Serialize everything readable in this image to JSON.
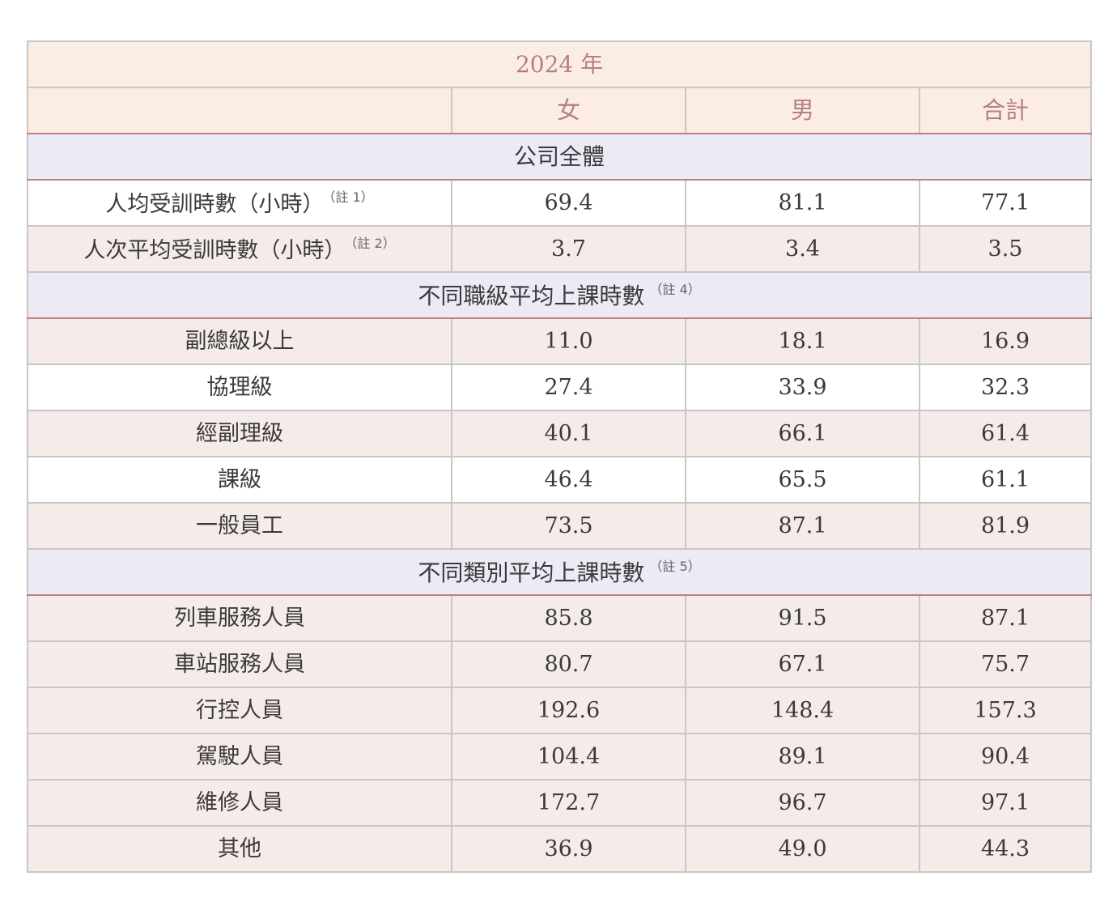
{
  "year_title": "2024 年",
  "columns": [
    "",
    "女",
    "男",
    "合計"
  ],
  "sections": [
    {
      "title": "公司全體",
      "note": "",
      "rows": [
        {
          "label": "人均受訓時數（小時）",
          "note": "（註 1）",
          "female": "69.4",
          "male": "81.1",
          "total": "77.1",
          "shade": false
        },
        {
          "label": "人次平均受訓時數（小時）",
          "note": "（註 2）",
          "female": "3.7",
          "male": "3.4",
          "total": "3.5",
          "shade": true
        }
      ]
    },
    {
      "title": "不同職級平均上課時數",
      "note": "（註 4）",
      "rows": [
        {
          "label": "副總級以上",
          "note": "",
          "female": "11.0",
          "male": "18.1",
          "total": "16.9",
          "shade": true
        },
        {
          "label": "協理級",
          "note": "",
          "female": "27.4",
          "male": "33.9",
          "total": "32.3",
          "shade": false
        },
        {
          "label": "經副理級",
          "note": "",
          "female": "40.1",
          "male": "66.1",
          "total": "61.4",
          "shade": true
        },
        {
          "label": "課級",
          "note": "",
          "female": "46.4",
          "male": "65.5",
          "total": "61.1",
          "shade": false
        },
        {
          "label": "一般員工",
          "note": "",
          "female": "73.5",
          "male": "87.1",
          "total": "81.9",
          "shade": true
        }
      ]
    },
    {
      "title": "不同類別平均上課時數",
      "note": "（註 5）",
      "rows": [
        {
          "label": "列車服務人員",
          "note": "",
          "female": "85.8",
          "male": "91.5",
          "total": "87.1",
          "shade": true
        },
        {
          "label": "車站服務人員",
          "note": "",
          "female": "80.7",
          "male": "67.1",
          "total": "75.7",
          "shade": true
        },
        {
          "label": "行控人員",
          "note": "",
          "female": "192.6",
          "male": "148.4",
          "total": "157.3",
          "shade": true
        },
        {
          "label": "駕駛人員",
          "note": "",
          "female": "104.4",
          "male": "89.1",
          "total": "90.4",
          "shade": true
        },
        {
          "label": "維修人員",
          "note": "",
          "female": "172.7",
          "male": "96.7",
          "total": "97.1",
          "shade": true
        },
        {
          "label": "其他",
          "note": "",
          "female": "36.9",
          "male": "49.0",
          "total": "44.3",
          "shade": true
        }
      ]
    }
  ],
  "colors": {
    "header_bg": "#fcede2",
    "header_text": "#b47e86",
    "section_bg": "#eceaf5",
    "row_shade_bg": "#f5ecea",
    "row_white_bg": "#ffffff",
    "accent_border": "#c27d8a",
    "grid_border": "#c8c6c6"
  }
}
